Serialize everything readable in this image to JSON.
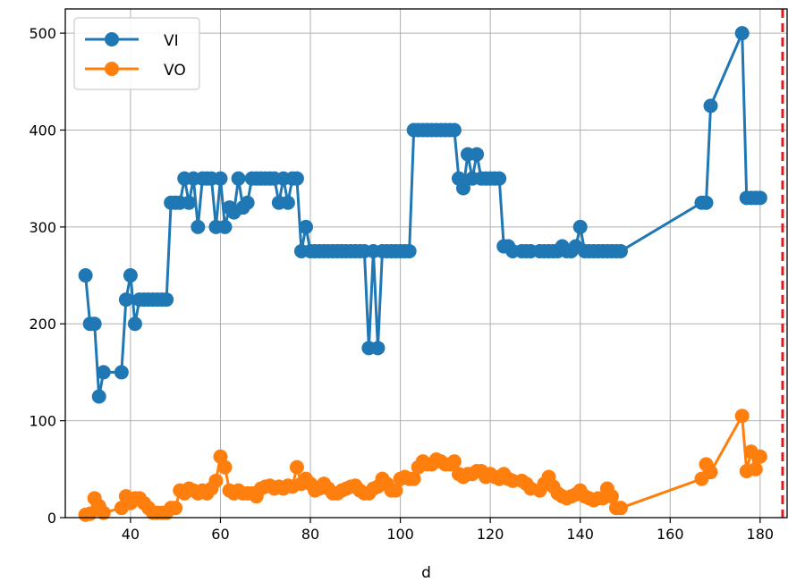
{
  "chart_data": {
    "type": "line",
    "xlabel": "d",
    "ylabel": "",
    "xlim": [
      25.5,
      186
    ],
    "ylim": [
      0,
      525
    ],
    "xticks": [
      40,
      60,
      80,
      100,
      120,
      140,
      160,
      180
    ],
    "yticks": [
      0,
      100,
      200,
      300,
      400,
      500
    ],
    "grid": true,
    "legend": "top-left",
    "vline": {
      "x": 185,
      "color": "#e41a1c",
      "style": "dashed"
    },
    "series": [
      {
        "name": "VI",
        "color": "#1f77b4",
        "x": [
          30,
          31,
          32,
          33,
          34,
          38,
          39,
          40,
          41,
          42,
          43,
          44,
          45,
          46,
          47,
          48,
          49,
          50,
          51,
          52,
          53,
          54,
          55,
          56,
          57,
          58,
          59,
          60,
          61,
          62,
          63,
          64,
          65,
          66,
          67,
          68,
          69,
          70,
          71,
          72,
          73,
          74,
          75,
          76,
          77,
          78,
          79,
          80,
          81,
          82,
          83,
          84,
          85,
          86,
          87,
          88,
          89,
          90,
          91,
          92,
          93,
          94,
          95,
          96,
          97,
          98,
          99,
          100,
          101,
          102,
          103,
          104,
          105,
          106,
          107,
          108,
          109,
          110,
          111,
          112,
          113,
          114,
          115,
          116,
          117,
          118,
          119,
          120,
          121,
          122,
          123,
          124,
          125,
          127,
          128,
          129,
          131,
          132,
          133,
          134,
          135,
          136,
          137,
          138,
          139,
          140,
          141,
          142,
          143,
          144,
          145,
          146,
          147,
          148,
          149,
          167,
          168,
          169,
          176,
          177,
          178,
          179,
          180
        ],
        "values": [
          250,
          200,
          200,
          125,
          150,
          150,
          225,
          250,
          200,
          225,
          225,
          225,
          225,
          225,
          225,
          225,
          325,
          325,
          325,
          350,
          325,
          350,
          300,
          350,
          350,
          350,
          300,
          350,
          300,
          320,
          315,
          350,
          320,
          325,
          350,
          350,
          350,
          350,
          350,
          350,
          325,
          350,
          325,
          350,
          350,
          275,
          300,
          275,
          275,
          275,
          275,
          275,
          275,
          275,
          275,
          275,
          275,
          275,
          275,
          275,
          175,
          275,
          175,
          275,
          275,
          275,
          275,
          275,
          275,
          275,
          400,
          400,
          400,
          400,
          400,
          400,
          400,
          400,
          400,
          400,
          350,
          340,
          375,
          350,
          375,
          350,
          350,
          350,
          350,
          350,
          280,
          280,
          275,
          275,
          275,
          275,
          275,
          275,
          275,
          275,
          275,
          280,
          275,
          275,
          280,
          300,
          275,
          275,
          275,
          275,
          275,
          275,
          275,
          275,
          275,
          325,
          325,
          425,
          500,
          330,
          330,
          330,
          330
        ]
      },
      {
        "name": "VO",
        "color": "#ff7f0e",
        "x": [
          30,
          31,
          32,
          33,
          34,
          38,
          39,
          40,
          41,
          42,
          43,
          44,
          45,
          46,
          47,
          48,
          49,
          50,
          51,
          52,
          53,
          54,
          55,
          56,
          57,
          58,
          59,
          60,
          61,
          62,
          63,
          64,
          65,
          66,
          67,
          68,
          69,
          70,
          71,
          72,
          73,
          74,
          75,
          76,
          77,
          78,
          79,
          80,
          81,
          82,
          83,
          84,
          85,
          86,
          87,
          88,
          89,
          90,
          91,
          92,
          93,
          94,
          95,
          96,
          97,
          98,
          99,
          100,
          101,
          102,
          103,
          104,
          105,
          106,
          107,
          108,
          109,
          110,
          111,
          112,
          113,
          114,
          115,
          116,
          117,
          118,
          119,
          120,
          121,
          122,
          123,
          124,
          125,
          127,
          128,
          129,
          131,
          132,
          133,
          134,
          135,
          136,
          137,
          138,
          139,
          140,
          141,
          142,
          143,
          144,
          145,
          146,
          147,
          148,
          149,
          167,
          168,
          169,
          176,
          177,
          178,
          179,
          180
        ],
        "values": [
          3,
          4,
          20,
          12,
          5,
          10,
          22,
          15,
          20,
          20,
          15,
          10,
          5,
          5,
          5,
          5,
          10,
          10,
          28,
          25,
          30,
          28,
          25,
          28,
          25,
          30,
          38,
          63,
          52,
          28,
          25,
          28,
          25,
          25,
          25,
          22,
          30,
          32,
          33,
          30,
          32,
          30,
          33,
          32,
          52,
          35,
          40,
          35,
          28,
          30,
          35,
          30,
          25,
          25,
          28,
          30,
          32,
          33,
          28,
          25,
          25,
          30,
          32,
          40,
          35,
          28,
          28,
          40,
          42,
          40,
          40,
          52,
          58,
          55,
          55,
          60,
          58,
          55,
          55,
          58,
          45,
          42,
          45,
          45,
          48,
          48,
          42,
          45,
          42,
          40,
          45,
          40,
          38,
          38,
          35,
          30,
          28,
          35,
          42,
          32,
          25,
          22,
          20,
          22,
          24,
          28,
          22,
          20,
          18,
          20,
          20,
          30,
          22,
          10,
          10,
          40,
          55,
          47,
          105,
          48,
          68,
          50,
          63
        ]
      }
    ]
  }
}
